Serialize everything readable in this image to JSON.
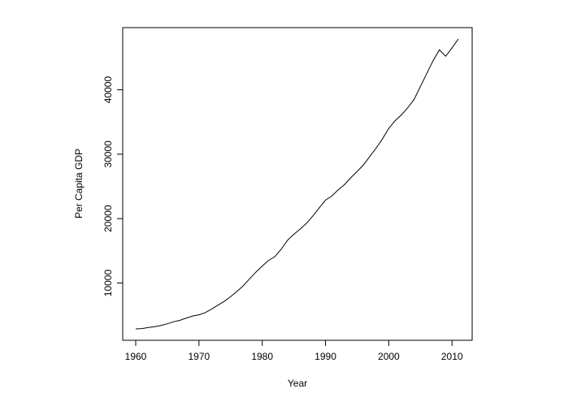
{
  "chart_data": {
    "type": "line",
    "title": "",
    "xlabel": "Year",
    "ylabel": "Per Capita GDP",
    "xlim": [
      1960,
      2011
    ],
    "ylim": [
      2881,
      47882
    ],
    "xticks": [
      1960,
      1970,
      1980,
      1990,
      2000,
      2010
    ],
    "yticks": [
      10000,
      20000,
      30000,
      40000
    ],
    "grid": false,
    "legend": "none",
    "line_color": "#000000",
    "series": [
      {
        "x": [
          1960,
          1961,
          1962,
          1963,
          1964,
          1965,
          1966,
          1967,
          1968,
          1969,
          1970,
          1971,
          1972,
          1973,
          1974,
          1975,
          1976,
          1977,
          1978,
          1979,
          1980,
          1981,
          1982,
          1983,
          1984,
          1985,
          1986,
          1987,
          1988,
          1989,
          1990,
          1991,
          1992,
          1993,
          1994,
          1995,
          1996,
          1997,
          1998,
          1999,
          2000,
          2001,
          2002,
          2003,
          2004,
          2005,
          2006,
          2007,
          2008,
          2009,
          2010,
          2011
        ],
        "y": [
          2881,
          2934,
          3107,
          3232,
          3420,
          3675,
          3994,
          4223,
          4563,
          4880,
          5068,
          5412,
          5965,
          6571,
          7160,
          7888,
          8699,
          9578,
          10657,
          11695,
          12634,
          13520,
          14096,
          15250,
          16646,
          17571,
          18389,
          19280,
          20411,
          21658,
          22876,
          23506,
          24466,
          25276,
          26359,
          27322,
          28328,
          29643,
          30944,
          32370,
          34000,
          35200,
          36100,
          37200,
          38500,
          40500,
          42500,
          44500,
          46200,
          45200,
          46500,
          47882
        ]
      }
    ]
  }
}
